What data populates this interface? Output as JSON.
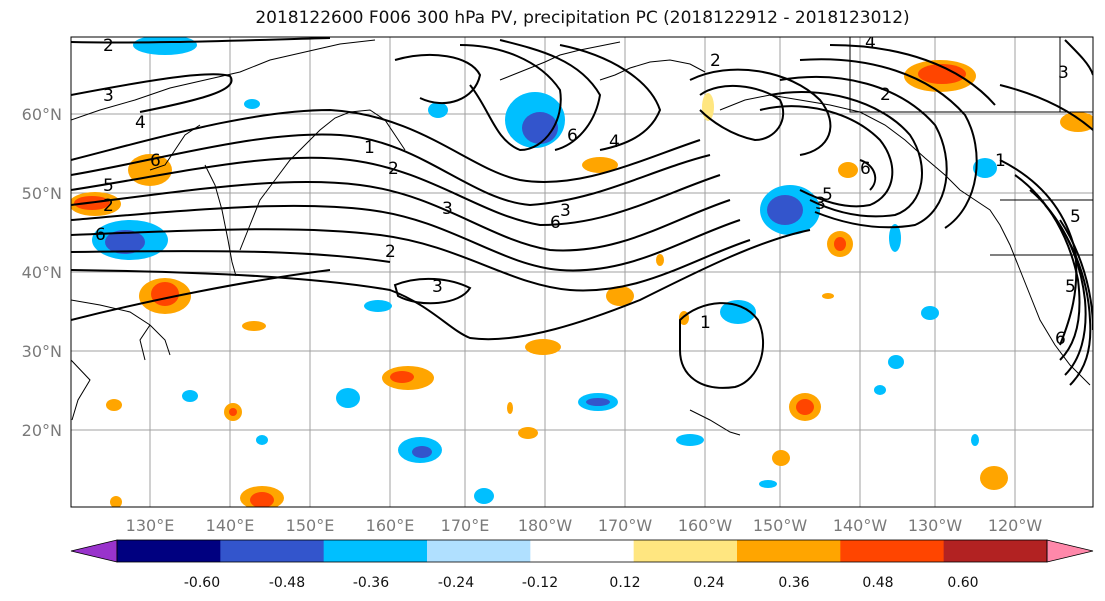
{
  "title": "2018122600 F006 300 hPa PV, precipitation PC (2018122912 - 2018123012)",
  "map": {
    "lat_labels": [
      "60°N",
      "50°N",
      "40°N",
      "30°N",
      "20°N"
    ],
    "lon_labels": [
      "130°E",
      "140°E",
      "150°E",
      "160°E",
      "170°E",
      "180°W",
      "170°W",
      "160°W",
      "150°W",
      "140°W",
      "130°W",
      "120°W"
    ],
    "pv_contour_labels": [
      "2",
      "3",
      "4",
      "5",
      "6",
      "2",
      "3",
      "6",
      "3",
      "1",
      "6",
      "2",
      "4",
      "6",
      "3",
      "2",
      "3",
      "1",
      "2",
      "3",
      "5",
      "6",
      "4",
      "5",
      "2",
      "1",
      "6",
      "5"
    ],
    "colors": {
      "contour": "#000000",
      "grid": "#a0a0a0",
      "coast": "#000000"
    }
  },
  "colorbar": {
    "tick_labels": [
      "-0.60",
      "-0.48",
      "-0.36",
      "-0.24",
      "-0.12",
      "0.12",
      "0.24",
      "0.36",
      "0.48",
      "0.60"
    ],
    "bin_colors": [
      "#9933cc",
      "#000080",
      "#3355cc",
      "#00bfff",
      "#b0e0ff",
      "#ffffff",
      "#ffe680",
      "#ffa500",
      "#ff4500",
      "#b22222",
      "#ff88aa"
    ]
  }
}
